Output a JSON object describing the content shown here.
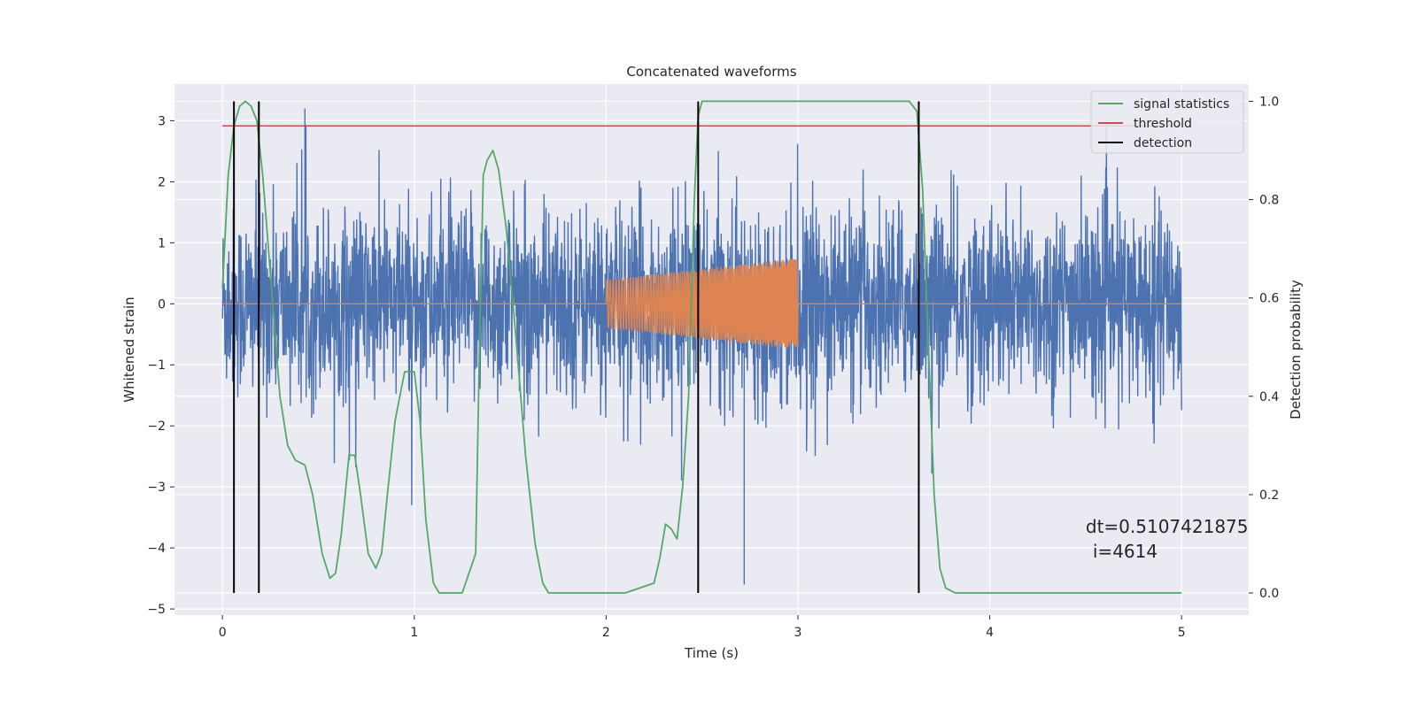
{
  "chart_data": {
    "type": "line",
    "title": "Concatenated waveforms",
    "xlabel": "Time (s)",
    "ylabel": "Whitened strain",
    "y2label": "Detection probability",
    "xlim": [
      -0.25,
      5.35
    ],
    "ylim": [
      -5.1,
      3.6
    ],
    "y2lim": [
      -0.045,
      1.035
    ],
    "xticks": [
      "0",
      "1",
      "2",
      "3",
      "4",
      "5"
    ],
    "yticks": [
      "3",
      "2",
      "1",
      "0",
      "−1",
      "−2",
      "−3",
      "−4",
      "−5"
    ],
    "y2ticks": [
      "1.0",
      "0.8",
      "0.6",
      "0.4",
      "0.2",
      "0.0"
    ],
    "grid": true,
    "legend_position": "top-right",
    "legend": [
      "signal statistics",
      "threshold",
      "detection"
    ],
    "series": [
      {
        "name": "whitened strain",
        "axis": "left",
        "color": "#4c72b0",
        "description_of_shape": "dense noise from 0 to 5 s, amplitude roughly ±1.5, peaks near ±3",
        "x_range": [
          0,
          5
        ],
        "amplitude": 1.4,
        "peak_values": [
          3.2,
          -4.6
        ]
      },
      {
        "name": "injected waveform",
        "axis": "left",
        "color": "#dd8452",
        "x_range": [
          2,
          3
        ],
        "amplitude_start": 0.4,
        "amplitude_end": 0.75
      },
      {
        "name": "signal statistics",
        "axis": "right",
        "color": "#55a868",
        "x": [
          0.0,
          0.03,
          0.06,
          0.09,
          0.12,
          0.15,
          0.18,
          0.21,
          0.24,
          0.27,
          0.3,
          0.34,
          0.38,
          0.43,
          0.47,
          0.52,
          0.56,
          0.59,
          0.62,
          0.66,
          0.69,
          0.72,
          0.76,
          0.8,
          0.83,
          0.86,
          0.9,
          0.95,
          1.0,
          1.03,
          1.06,
          1.1,
          1.13,
          1.18,
          1.25,
          1.32,
          1.34,
          1.36,
          1.38,
          1.41,
          1.44,
          1.48,
          1.53,
          1.58,
          1.63,
          1.67,
          1.7,
          1.75,
          1.9,
          2.1,
          2.25,
          2.28,
          2.31,
          2.34,
          2.37,
          2.4,
          2.43,
          2.46,
          2.48,
          2.5,
          2.53,
          2.6,
          3.5,
          3.58,
          3.62,
          3.65,
          3.68,
          3.71,
          3.74,
          3.77,
          3.82,
          4.0,
          5.0
        ],
        "values": [
          0.62,
          0.85,
          0.95,
          0.99,
          1.0,
          0.99,
          0.96,
          0.85,
          0.7,
          0.55,
          0.4,
          0.3,
          0.27,
          0.26,
          0.2,
          0.08,
          0.03,
          0.04,
          0.12,
          0.28,
          0.28,
          0.2,
          0.08,
          0.05,
          0.08,
          0.2,
          0.35,
          0.45,
          0.45,
          0.35,
          0.15,
          0.02,
          0.0,
          0.0,
          0.0,
          0.08,
          0.5,
          0.85,
          0.88,
          0.9,
          0.86,
          0.74,
          0.52,
          0.28,
          0.1,
          0.02,
          0.0,
          0.0,
          0.0,
          0.0,
          0.02,
          0.07,
          0.14,
          0.13,
          0.11,
          0.22,
          0.4,
          0.8,
          0.97,
          1.0,
          1.0,
          1.0,
          1.0,
          1.0,
          0.98,
          0.82,
          0.5,
          0.2,
          0.05,
          0.01,
          0.0,
          0.0,
          0.0
        ]
      },
      {
        "name": "threshold",
        "axis": "right",
        "color": "#c44e52",
        "x": [
          0,
          5
        ],
        "values": [
          0.95,
          0.95
        ]
      },
      {
        "name": "detection",
        "axis": "right",
        "color": "#000000",
        "x_positions": [
          0.06,
          0.19,
          2.48,
          3.63
        ],
        "y_range": [
          0.0,
          1.0
        ]
      }
    ],
    "annotation": {
      "line1": "dt=0.5107421875",
      "line2": "i=4614",
      "x": 4.5,
      "y": -3.75
    },
    "colors": {
      "background": "#eaeaf2",
      "grid": "#ffffff",
      "strain": "#4c72b0",
      "waveform": "#dd8452",
      "statistics": "#55a868",
      "threshold": "#c44e52",
      "detection": "#000000"
    }
  }
}
